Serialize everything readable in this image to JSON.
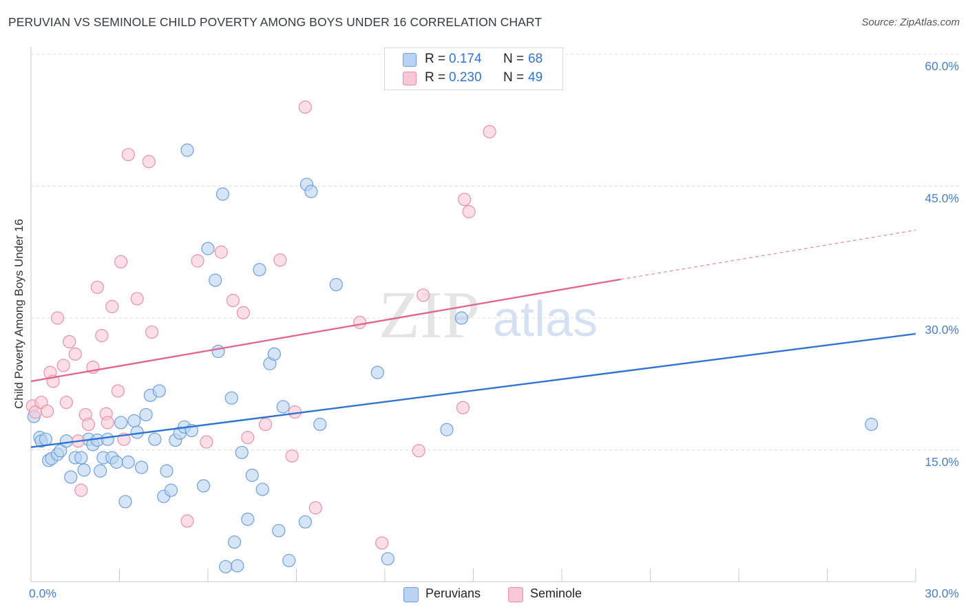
{
  "title": "PERUVIAN VS SEMINOLE CHILD POVERTY AMONG BOYS UNDER 16 CORRELATION CHART",
  "source": "Source: ZipAtlas.com",
  "watermark": {
    "zip": "ZIP",
    "atlas": "atlas"
  },
  "colors": {
    "blue_fill": "#b9d3f2",
    "blue_stroke": "#6e9fdc",
    "blue_line": "#2f74d0",
    "pink_fill": "#f9c8d6",
    "pink_stroke": "#ec8fac",
    "pink_line": "#e0678f",
    "axis_text": "#4a7fc9",
    "grid": "#dcdcdc"
  },
  "legend": {
    "rows": [
      {
        "r_label": "R =",
        "r_value": "0.174",
        "n_label": "N =",
        "n_value": "68",
        "series": "blue"
      },
      {
        "r_label": "R =",
        "r_value": "0.230",
        "n_label": "N =",
        "n_value": "49",
        "series": "pink"
      }
    ]
  },
  "bottom_legend": [
    "Peruvians",
    "Seminole"
  ],
  "chart_data": {
    "type": "scatter",
    "title": "PERUVIAN VS SEMINOLE CHILD POVERTY AMONG BOYS UNDER 16 CORRELATION CHART",
    "xlabel": "",
    "ylabel": "Child Poverty Among Boys Under 16",
    "xlim": [
      0,
      30
    ],
    "ylim": [
      0,
      60
    ],
    "x_tick_labels": [
      "0.0%",
      "30.0%"
    ],
    "y_tick_values": [
      15,
      30,
      45,
      60
    ],
    "y_tick_labels": [
      "15.0%",
      "30.0%",
      "45.0%",
      "60.0%"
    ],
    "grid": true,
    "legend_position": "top-center",
    "series": [
      {
        "name": "Peruvians",
        "color": "#b9d3f2",
        "regression": {
          "x": [
            0,
            30
          ],
          "y": [
            15.3,
            28.2
          ]
        },
        "points": [
          [
            0.1,
            18.8
          ],
          [
            0.3,
            16.4
          ],
          [
            0.35,
            16.0
          ],
          [
            0.5,
            16.2
          ],
          [
            0.6,
            13.8
          ],
          [
            0.7,
            14.0
          ],
          [
            0.9,
            14.5
          ],
          [
            1.0,
            14.9
          ],
          [
            1.2,
            16.0
          ],
          [
            1.35,
            11.9
          ],
          [
            1.5,
            14.1
          ],
          [
            1.7,
            14.1
          ],
          [
            1.8,
            12.7
          ],
          [
            1.95,
            16.2
          ],
          [
            2.1,
            15.6
          ],
          [
            2.25,
            16.1
          ],
          [
            2.35,
            12.6
          ],
          [
            2.45,
            14.1
          ],
          [
            2.6,
            16.2
          ],
          [
            2.75,
            14.1
          ],
          [
            2.9,
            13.6
          ],
          [
            3.05,
            18.1
          ],
          [
            3.2,
            9.1
          ],
          [
            3.3,
            13.6
          ],
          [
            3.5,
            18.3
          ],
          [
            3.6,
            17.0
          ],
          [
            3.75,
            13.0
          ],
          [
            3.9,
            19.0
          ],
          [
            4.05,
            21.2
          ],
          [
            4.2,
            16.2
          ],
          [
            4.35,
            21.7
          ],
          [
            4.5,
            9.7
          ],
          [
            4.6,
            12.6
          ],
          [
            4.75,
            10.4
          ],
          [
            4.9,
            16.1
          ],
          [
            5.05,
            16.9
          ],
          [
            5.2,
            17.6
          ],
          [
            5.3,
            49.1
          ],
          [
            5.45,
            17.2
          ],
          [
            5.85,
            10.9
          ],
          [
            6.0,
            37.9
          ],
          [
            6.25,
            34.3
          ],
          [
            6.35,
            26.2
          ],
          [
            6.5,
            44.1
          ],
          [
            6.6,
            1.7
          ],
          [
            6.8,
            20.9
          ],
          [
            6.9,
            4.5
          ],
          [
            7.0,
            1.8
          ],
          [
            7.15,
            14.7
          ],
          [
            7.35,
            7.1
          ],
          [
            7.5,
            12.1
          ],
          [
            7.75,
            35.5
          ],
          [
            7.85,
            10.5
          ],
          [
            8.1,
            24.8
          ],
          [
            8.25,
            25.9
          ],
          [
            8.4,
            5.8
          ],
          [
            8.55,
            19.9
          ],
          [
            8.75,
            2.4
          ],
          [
            9.3,
            6.8
          ],
          [
            9.35,
            45.2
          ],
          [
            9.5,
            44.4
          ],
          [
            9.8,
            17.9
          ],
          [
            10.35,
            33.8
          ],
          [
            11.75,
            23.8
          ],
          [
            12.1,
            2.6
          ],
          [
            14.1,
            17.3
          ],
          [
            14.6,
            30.0
          ],
          [
            28.5,
            17.9
          ]
        ]
      },
      {
        "name": "Seminole",
        "color": "#f9c8d6",
        "regression": {
          "x": [
            0,
            20
          ],
          "y": [
            22.8,
            34.4
          ]
        },
        "regression_extension": {
          "x": [
            20,
            30
          ],
          "y": [
            34.4,
            40.0
          ]
        },
        "points": [
          [
            0.05,
            20.0
          ],
          [
            0.15,
            19.3
          ],
          [
            0.35,
            20.4
          ],
          [
            0.55,
            19.4
          ],
          [
            0.65,
            23.8
          ],
          [
            0.75,
            22.8
          ],
          [
            0.9,
            30.0
          ],
          [
            1.1,
            24.6
          ],
          [
            1.2,
            20.4
          ],
          [
            1.3,
            27.3
          ],
          [
            1.5,
            25.9
          ],
          [
            1.6,
            16.0
          ],
          [
            1.7,
            10.4
          ],
          [
            1.85,
            19.0
          ],
          [
            1.95,
            17.9
          ],
          [
            2.1,
            24.4
          ],
          [
            2.25,
            33.5
          ],
          [
            2.4,
            28.0
          ],
          [
            2.55,
            19.1
          ],
          [
            2.6,
            18.1
          ],
          [
            2.75,
            31.3
          ],
          [
            2.95,
            21.7
          ],
          [
            3.05,
            36.4
          ],
          [
            3.15,
            16.2
          ],
          [
            3.3,
            48.6
          ],
          [
            3.6,
            32.2
          ],
          [
            4.0,
            47.8
          ],
          [
            4.1,
            28.4
          ],
          [
            5.3,
            6.9
          ],
          [
            5.65,
            36.5
          ],
          [
            5.95,
            15.9
          ],
          [
            6.45,
            37.5
          ],
          [
            6.85,
            32.0
          ],
          [
            7.2,
            30.6
          ],
          [
            7.35,
            16.4
          ],
          [
            7.95,
            17.9
          ],
          [
            8.45,
            36.6
          ],
          [
            8.85,
            14.3
          ],
          [
            8.95,
            19.3
          ],
          [
            9.3,
            54.0
          ],
          [
            9.65,
            8.4
          ],
          [
            11.15,
            29.5
          ],
          [
            11.9,
            4.4
          ],
          [
            13.15,
            14.9
          ],
          [
            13.3,
            32.6
          ],
          [
            14.65,
            19.8
          ],
          [
            14.7,
            43.5
          ],
          [
            14.85,
            42.1
          ],
          [
            15.55,
            51.2
          ]
        ]
      }
    ]
  }
}
